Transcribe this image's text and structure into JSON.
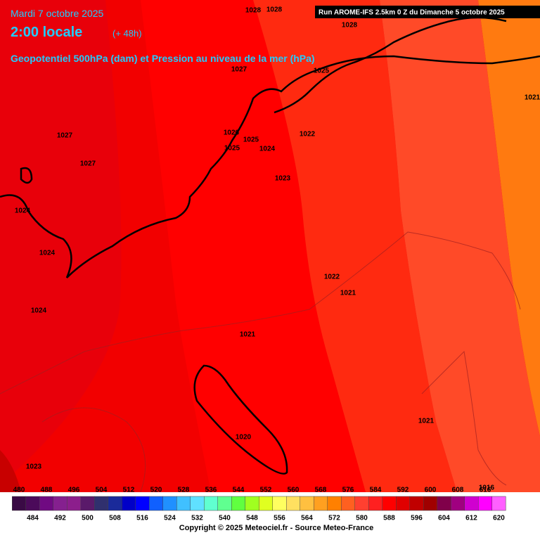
{
  "header": {
    "date": "Mardi 7 octobre 2025",
    "time": "2:00 locale",
    "lead": "(+ 48h)",
    "field": "Geopotentiel 500hPa (dam) et Pression au niveau de la mer (hPa)",
    "run": "Run AROME-IFS 2.5km 0 Z du Dimanche 5 octobre 2025"
  },
  "isobar_labels": [
    "1028",
    "1028",
    "1028",
    "1027",
    "1025",
    "1021",
    "1027",
    "1026",
    "1025",
    "1022",
    "1025",
    "1024",
    "1027",
    "1023",
    "1024",
    "1024",
    "1022",
    "1021",
    "1024",
    "1021",
    "1021",
    "1020",
    "1023",
    "1016"
  ],
  "legend": {
    "values": [
      480,
      484,
      488,
      492,
      496,
      500,
      504,
      508,
      512,
      516,
      520,
      524,
      528,
      532,
      536,
      540,
      544,
      548,
      552,
      556,
      560,
      564,
      568,
      572,
      576,
      580,
      584,
      588,
      592,
      596,
      600,
      604,
      608,
      612,
      616,
      620
    ],
    "colors": [
      "#3a0a45",
      "#4b0a5a",
      "#700a82",
      "#85208f",
      "#8c1e8c",
      "#5a1a6a",
      "#30306e",
      "#1a2a9a",
      "#0000c8",
      "#0000ff",
      "#1060ff",
      "#2090ff",
      "#40c0ff",
      "#60e0ff",
      "#60ffd0",
      "#60ff90",
      "#60ff40",
      "#a0ff20",
      "#e0ff20",
      "#ffff60",
      "#ffe060",
      "#ffc040",
      "#ffa020",
      "#ff8000",
      "#ff6020",
      "#ff4030",
      "#ff2020",
      "#ff0000",
      "#e00000",
      "#c00000",
      "#a00000",
      "#80004a",
      "#a00080",
      "#d000d0",
      "#ff00ff",
      "#ff60ff"
    ]
  },
  "copyright": "Copyright © 2025 Meteociel.fr - Source Meteo-France"
}
